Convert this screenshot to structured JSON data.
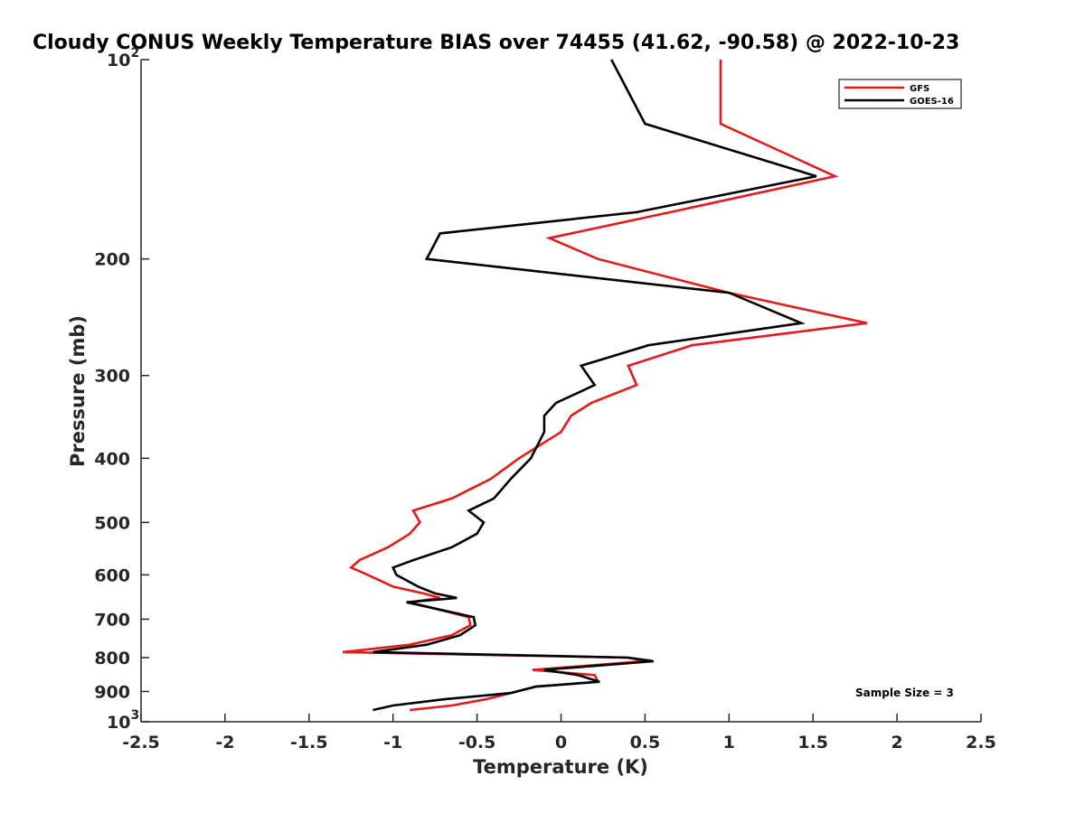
{
  "chart_data": {
    "type": "line",
    "title": "Cloudy CONUS Weekly Temperature BIAS over 74455 (41.62, -90.58) @ 2022-10-23",
    "xlabel": "Temperature (K)",
    "ylabel": "Pressure (mb)",
    "xlim": [
      -2.5,
      2.5
    ],
    "ylim": [
      100,
      1000
    ],
    "y_scale": "log",
    "y_reversed": true,
    "x_ticks": [
      "-2.5",
      "-2",
      "-1.5",
      "-1",
      "-0.5",
      "0",
      "0.5",
      "1",
      "1.5",
      "2",
      "2.5"
    ],
    "x_tick_values": [
      -2.5,
      -2,
      -1.5,
      -1,
      -0.5,
      0,
      0.5,
      1,
      1.5,
      2,
      2.5
    ],
    "y_ticks": [
      {
        "value": 100,
        "base": "10",
        "exp": "2"
      },
      {
        "value": 200,
        "label": "200"
      },
      {
        "value": 300,
        "label": "300"
      },
      {
        "value": 400,
        "label": "400"
      },
      {
        "value": 500,
        "label": "500"
      },
      {
        "value": 600,
        "label": "600"
      },
      {
        "value": 700,
        "label": "700"
      },
      {
        "value": 800,
        "label": "800"
      },
      {
        "value": 900,
        "label": "900"
      },
      {
        "value": 1000,
        "base": "10",
        "exp": "3"
      }
    ],
    "legend_position": "top-right",
    "grid": false,
    "annotation": "Sample Size = 3",
    "series": [
      {
        "name": "GFS",
        "color": "#e41a1c",
        "points": [
          [
            0.95,
            100
          ],
          [
            0.95,
            125
          ],
          [
            1.63,
            150
          ],
          [
            0.65,
            170
          ],
          [
            -0.07,
            186
          ],
          [
            0.22,
            200
          ],
          [
            1.0,
            225
          ],
          [
            1.82,
            250
          ],
          [
            0.78,
            270
          ],
          [
            0.4,
            290
          ],
          [
            0.45,
            310
          ],
          [
            0.18,
            330
          ],
          [
            0.06,
            345
          ],
          [
            0.0,
            365
          ],
          [
            -0.25,
            400
          ],
          [
            -0.42,
            430
          ],
          [
            -0.65,
            460
          ],
          [
            -0.88,
            480
          ],
          [
            -0.84,
            500
          ],
          [
            -0.9,
            520
          ],
          [
            -1.03,
            545
          ],
          [
            -1.2,
            570
          ],
          [
            -1.25,
            585
          ],
          [
            -1.15,
            600
          ],
          [
            -1.0,
            625
          ],
          [
            -0.82,
            640
          ],
          [
            -0.72,
            650
          ],
          [
            -0.9,
            660
          ],
          [
            -0.55,
            695
          ],
          [
            -0.54,
            715
          ],
          [
            -0.65,
            740
          ],
          [
            -0.9,
            765
          ],
          [
            -1.3,
            785
          ],
          [
            0.4,
            800
          ],
          [
            0.5,
            810
          ],
          [
            -0.17,
            835
          ],
          [
            0.2,
            850
          ],
          [
            0.22,
            870
          ],
          [
            -0.15,
            885
          ],
          [
            -0.3,
            905
          ],
          [
            -0.45,
            925
          ],
          [
            -0.65,
            945
          ],
          [
            -0.9,
            960
          ]
        ]
      },
      {
        "name": "GOES-16",
        "color": "#000000",
        "points": [
          [
            0.3,
            100
          ],
          [
            0.5,
            125
          ],
          [
            1.52,
            150
          ],
          [
            0.45,
            170
          ],
          [
            -0.72,
            183
          ],
          [
            -0.8,
            200
          ],
          [
            1.0,
            225
          ],
          [
            1.43,
            250
          ],
          [
            0.52,
            270
          ],
          [
            0.12,
            290
          ],
          [
            0.2,
            310
          ],
          [
            -0.03,
            330
          ],
          [
            -0.1,
            345
          ],
          [
            -0.1,
            365
          ],
          [
            -0.18,
            400
          ],
          [
            -0.3,
            430
          ],
          [
            -0.4,
            460
          ],
          [
            -0.55,
            480
          ],
          [
            -0.46,
            500
          ],
          [
            -0.5,
            520
          ],
          [
            -0.65,
            545
          ],
          [
            -0.88,
            570
          ],
          [
            -1.0,
            585
          ],
          [
            -0.98,
            600
          ],
          [
            -0.85,
            625
          ],
          [
            -0.75,
            640
          ],
          [
            -0.62,
            650
          ],
          [
            -0.92,
            660
          ],
          [
            -0.52,
            695
          ],
          [
            -0.51,
            715
          ],
          [
            -0.6,
            740
          ],
          [
            -0.8,
            765
          ],
          [
            -1.12,
            785
          ],
          [
            0.4,
            800
          ],
          [
            0.55,
            810
          ],
          [
            -0.1,
            835
          ],
          [
            0.1,
            850
          ],
          [
            0.23,
            870
          ],
          [
            -0.15,
            885
          ],
          [
            -0.3,
            905
          ],
          [
            -0.7,
            925
          ],
          [
            -1.0,
            945
          ],
          [
            -1.12,
            960
          ]
        ]
      }
    ]
  }
}
